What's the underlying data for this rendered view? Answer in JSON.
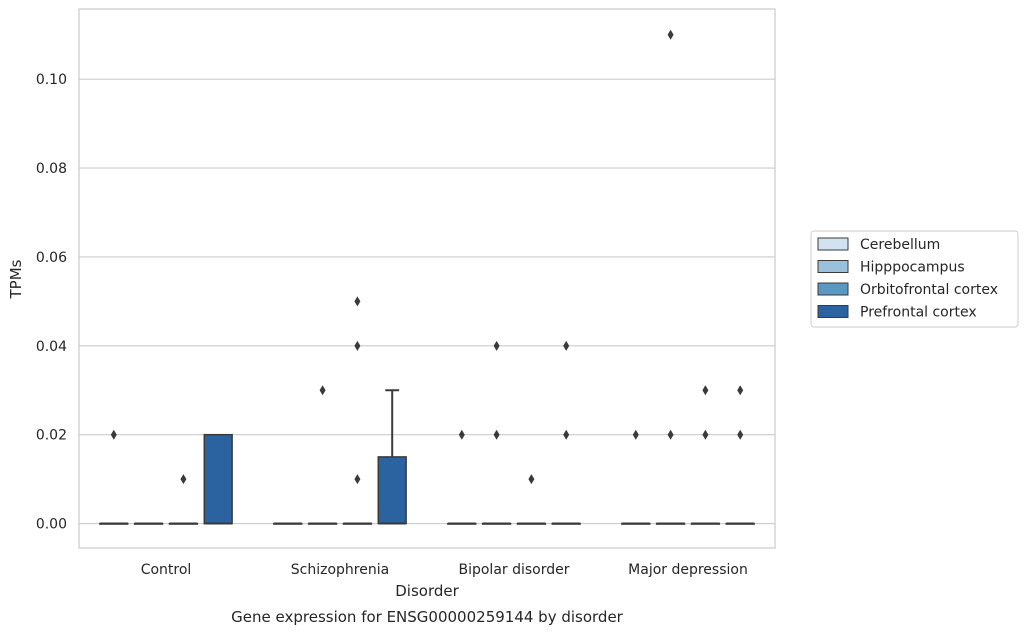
{
  "chart_data": {
    "type": "box",
    "title": "Gene expression for ENSG00000259144 by disorder",
    "xlabel": "Disorder",
    "ylabel": "TPMs",
    "ylim": [
      -0.0055,
      0.1158
    ],
    "yticks": [
      0.0,
      0.02,
      0.04,
      0.06,
      0.08,
      0.1
    ],
    "ytick_labels": [
      "0.00",
      "0.02",
      "0.04",
      "0.06",
      "0.08",
      "0.10"
    ],
    "grid": true,
    "legend_position": "right",
    "categories": [
      "Control",
      "Schizophrenia",
      "Bipolar disorder",
      "Major depression"
    ],
    "series": [
      {
        "name": "Cerebellum",
        "color": "#d3e2f0",
        "boxes": [
          {
            "q1": 0,
            "median": 0,
            "q3": 0,
            "whislo": 0,
            "whishi": 0,
            "fliers": [
              0.02
            ]
          },
          {
            "q1": 0,
            "median": 0,
            "q3": 0,
            "whislo": 0,
            "whishi": 0,
            "fliers": []
          },
          {
            "q1": 0,
            "median": 0,
            "q3": 0,
            "whislo": 0,
            "whishi": 0,
            "fliers": [
              0.02
            ]
          },
          {
            "q1": 0,
            "median": 0,
            "q3": 0,
            "whislo": 0,
            "whishi": 0,
            "fliers": [
              0.02
            ]
          }
        ]
      },
      {
        "name": "Hipppocampus",
        "color": "#9bc0dc",
        "boxes": [
          {
            "q1": 0,
            "median": 0,
            "q3": 0,
            "whislo": 0,
            "whishi": 0,
            "fliers": []
          },
          {
            "q1": 0,
            "median": 0,
            "q3": 0,
            "whislo": 0,
            "whishi": 0,
            "fliers": [
              0.03
            ]
          },
          {
            "q1": 0,
            "median": 0,
            "q3": 0,
            "whislo": 0,
            "whishi": 0,
            "fliers": [
              0.02,
              0.04
            ]
          },
          {
            "q1": 0,
            "median": 0,
            "q3": 0,
            "whislo": 0,
            "whishi": 0,
            "fliers": [
              0.02,
              0.11
            ]
          }
        ]
      },
      {
        "name": "Orbitofrontal cortex",
        "color": "#5a97c3",
        "boxes": [
          {
            "q1": 0,
            "median": 0,
            "q3": 0,
            "whislo": 0,
            "whishi": 0,
            "fliers": [
              0.01
            ]
          },
          {
            "q1": 0,
            "median": 0,
            "q3": 0,
            "whislo": 0,
            "whishi": 0,
            "fliers": [
              0.01,
              0.04,
              0.05
            ]
          },
          {
            "q1": 0,
            "median": 0,
            "q3": 0,
            "whislo": 0,
            "whishi": 0,
            "fliers": [
              0.01
            ]
          },
          {
            "q1": 0,
            "median": 0,
            "q3": 0,
            "whislo": 0,
            "whishi": 0,
            "fliers": [
              0.02,
              0.03
            ]
          }
        ]
      },
      {
        "name": "Prefrontal cortex",
        "color": "#2a63a0",
        "boxes": [
          {
            "q1": 0,
            "median": 0,
            "q3": 0.02,
            "whislo": 0,
            "whishi": 0.02,
            "fliers": []
          },
          {
            "q1": 0,
            "median": 0,
            "q3": 0.015,
            "whislo": 0,
            "whishi": 0.03,
            "fliers": []
          },
          {
            "q1": 0,
            "median": 0,
            "q3": 0,
            "whislo": 0,
            "whishi": 0,
            "fliers": [
              0.02,
              0.04
            ]
          },
          {
            "q1": 0,
            "median": 0,
            "q3": 0,
            "whislo": 0,
            "whishi": 0,
            "fliers": [
              0.02,
              0.03
            ]
          }
        ]
      }
    ]
  }
}
